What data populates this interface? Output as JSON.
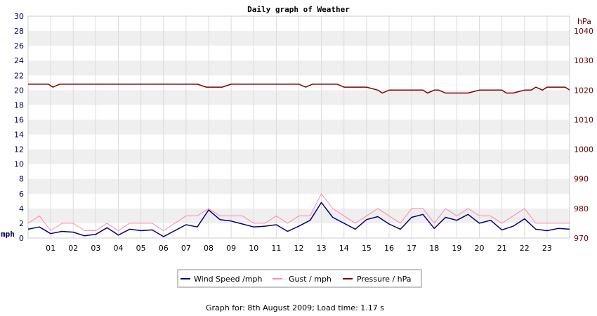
{
  "chart_data": {
    "type": "line",
    "title": "Daily graph of Weather",
    "footer": "Graph for: 8th August 2009; Load time: 1.17 s",
    "y_left": {
      "unit": "mph",
      "min": 0,
      "max": 30,
      "ticks": [
        "0",
        "2",
        "4",
        "6",
        "8",
        "10",
        "12",
        "14",
        "16",
        "18",
        "20",
        "22",
        "24",
        "26",
        "28",
        "30"
      ]
    },
    "y_right": {
      "unit": "hPa",
      "min": 970,
      "max": 1045,
      "ticks": [
        "970",
        "980",
        "990",
        "1000",
        "1010",
        "1020",
        "1030",
        "1040"
      ]
    },
    "x": {
      "min": 0,
      "max": 24,
      "ticks": [
        "01",
        "02",
        "03",
        "04",
        "05",
        "06",
        "07",
        "08",
        "09",
        "10",
        "11",
        "12",
        "13",
        "14",
        "15",
        "16",
        "17",
        "18",
        "19",
        "20",
        "21",
        "22",
        "23"
      ]
    },
    "grid": "horizontal bands",
    "legend_position": "bottom",
    "colors": {
      "wind": "#000080",
      "gust": "#ff88aa",
      "pressure": "#800000",
      "band": "#efefef",
      "grid": "#dcdcdc"
    },
    "series": [
      {
        "name": "Wind Speed /mph",
        "axis": "left",
        "color": "#000080",
        "hours": [
          0,
          0.5,
          1,
          1.5,
          2,
          2.5,
          3,
          3.5,
          4,
          4.5,
          5,
          5.5,
          6,
          6.5,
          7,
          7.5,
          8,
          8.5,
          9,
          9.5,
          10,
          10.5,
          11,
          11.5,
          12,
          12.5,
          13,
          13.5,
          14,
          14.5,
          15,
          15.5,
          16,
          16.5,
          17,
          17.5,
          18,
          18.5,
          19,
          19.5,
          20,
          20.5,
          21,
          21.5,
          22,
          22.5,
          23,
          23.5,
          24
        ],
        "values": [
          1.2,
          1.5,
          0.6,
          0.9,
          0.8,
          0.3,
          0.5,
          1.4,
          0.4,
          1.2,
          1.0,
          1.1,
          0.2,
          1.0,
          1.8,
          1.5,
          3.8,
          2.5,
          2.3,
          1.9,
          1.5,
          1.6,
          1.8,
          0.9,
          1.6,
          2.4,
          4.8,
          2.8,
          2.0,
          1.2,
          2.5,
          2.9,
          1.9,
          1.2,
          2.8,
          3.2,
          1.3,
          2.8,
          2.4,
          3.2,
          2.0,
          2.4,
          1.1,
          1.6,
          2.6,
          1.2,
          1.0,
          1.3,
          1.2
        ]
      },
      {
        "name": "Gust / mph",
        "axis": "left",
        "color": "#ff88aa",
        "hours": [
          0,
          0.5,
          1,
          1.5,
          2,
          2.5,
          3,
          3.5,
          4,
          4.5,
          5,
          5.5,
          6,
          6.5,
          7,
          7.5,
          8,
          8.5,
          9,
          9.5,
          10,
          10.5,
          11,
          11.5,
          12,
          12.5,
          13,
          13.5,
          14,
          14.5,
          15,
          15.5,
          16,
          16.5,
          17,
          17.5,
          18,
          18.5,
          19,
          19.5,
          20,
          20.5,
          21,
          21.5,
          22,
          22.5,
          23,
          23.5,
          24
        ],
        "values": [
          2,
          3,
          1,
          2,
          2,
          1,
          1,
          2,
          1,
          2,
          2,
          2,
          1,
          2,
          3,
          3,
          4,
          3,
          3,
          3,
          2,
          2,
          3,
          2,
          3,
          3,
          6,
          4,
          3,
          2,
          3,
          4,
          3,
          2,
          4,
          4,
          2,
          4,
          3,
          4,
          3,
          3,
          2,
          3,
          4,
          2,
          2,
          2,
          2
        ]
      },
      {
        "name": "Pressure / hPa",
        "axis": "right",
        "color": "#800000",
        "hours": [
          0,
          0.9,
          1.1,
          1.4,
          2.0,
          2.3,
          3,
          4,
          5,
          6,
          7,
          7.5,
          7.9,
          8.3,
          8.6,
          9,
          10,
          11,
          12,
          12.3,
          12.6,
          13,
          13.7,
          14,
          14.5,
          15,
          15.5,
          15.7,
          16,
          17,
          17.5,
          17.7,
          18,
          18.2,
          18.5,
          19,
          19.5,
          20,
          20.5,
          21,
          21.2,
          21.5,
          22,
          22.3,
          22.5,
          22.8,
          23,
          23.5,
          23.8,
          24
        ],
        "values": [
          1022,
          1022,
          1021,
          1022,
          1022,
          1022,
          1022,
          1022,
          1022,
          1022,
          1022,
          1022,
          1021,
          1021,
          1021,
          1022,
          1022,
          1022,
          1022,
          1021,
          1022,
          1022,
          1022,
          1021,
          1021,
          1021,
          1020,
          1019,
          1020,
          1020,
          1020,
          1019,
          1020,
          1020,
          1019,
          1019,
          1019,
          1020,
          1020,
          1020,
          1019,
          1019,
          1020,
          1020,
          1021,
          1020,
          1021,
          1021,
          1021,
          1020
        ]
      }
    ]
  }
}
